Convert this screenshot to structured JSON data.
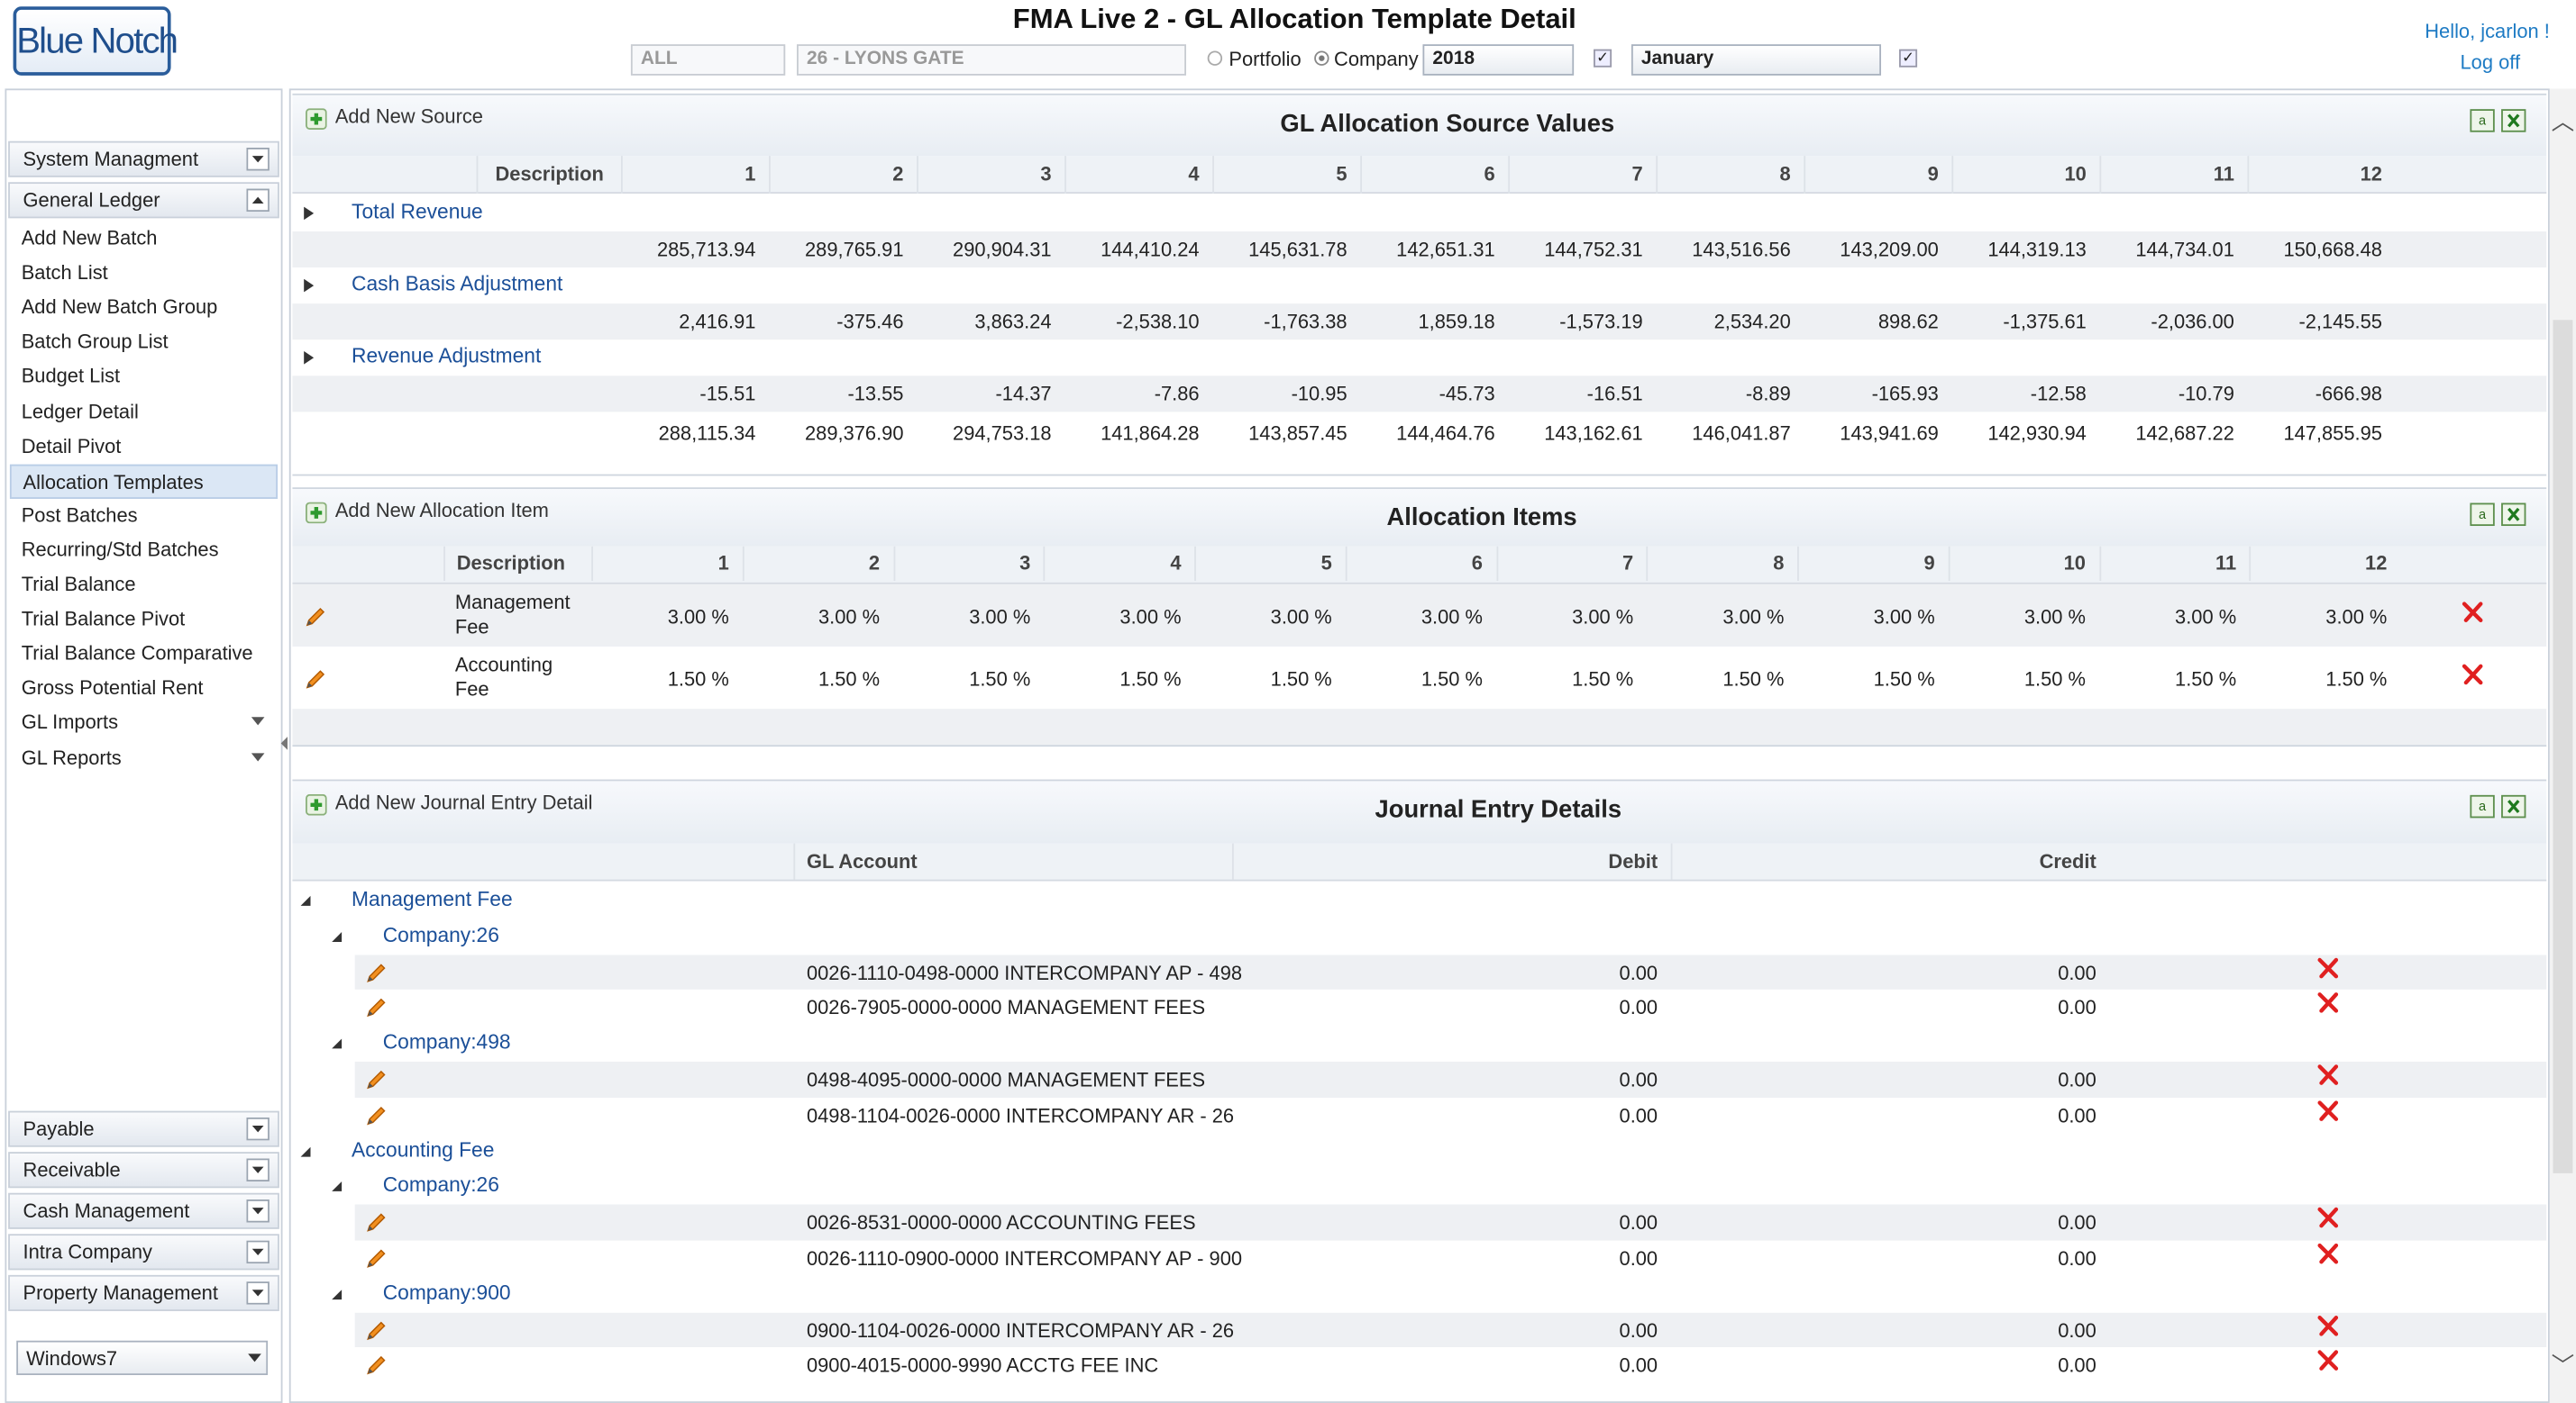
{
  "header": {
    "logo": "Blue Notch",
    "title": "FMA Live 2 - GL Allocation Template Detail",
    "greeting": "Hello, jcarlon !",
    "logoff": "Log off",
    "filters": {
      "scope": "ALL",
      "property": "26 - LYONS GATE",
      "portfolio": "Portfolio",
      "company": "Company",
      "year": "2018",
      "month": "January"
    }
  },
  "sidebar": {
    "top_menus": [
      {
        "label": "System Managment"
      },
      {
        "label": "General Ledger",
        "items": [
          "Add New Batch",
          "Batch List",
          "Add New Batch Group",
          "Batch Group List",
          "Budget List",
          "Ledger Detail",
          "Detail Pivot",
          "Allocation Templates",
          "Post Batches",
          "Recurring/Std Batches",
          "Trial Balance",
          "Trial Balance Pivot",
          "Trial Balance Comparative",
          "Gross Potential Rent",
          "GL Imports",
          "GL Reports"
        ]
      }
    ],
    "bottom_menus": [
      "Payable",
      "Receivable",
      "Cash Management",
      "Intra Company",
      "Property Management"
    ],
    "theme": "Windows7"
  },
  "source": {
    "add": "Add New Source",
    "title": "GL Allocation Source Values",
    "columns": [
      "Description",
      "1",
      "2",
      "3",
      "4",
      "5",
      "6",
      "7",
      "8",
      "9",
      "10",
      "11",
      "12"
    ],
    "groups": [
      {
        "name": "Total Revenue",
        "values": [
          "285,713.94",
          "289,765.91",
          "290,904.31",
          "144,410.24",
          "145,631.78",
          "142,651.31",
          "144,752.31",
          "143,516.56",
          "143,209.00",
          "144,319.13",
          "144,734.01",
          "150,668.48"
        ]
      },
      {
        "name": "Cash Basis Adjustment",
        "values": [
          "2,416.91",
          "-375.46",
          "3,863.24",
          "-2,538.10",
          "-1,763.38",
          "1,859.18",
          "-1,573.19",
          "2,534.20",
          "898.62",
          "-1,375.61",
          "-2,036.00",
          "-2,145.55"
        ]
      },
      {
        "name": "Revenue Adjustment",
        "values": [
          "-15.51",
          "-13.55",
          "-14.37",
          "-7.86",
          "-10.95",
          "-45.73",
          "-16.51",
          "-8.89",
          "-165.93",
          "-12.58",
          "-10.79",
          "-666.98"
        ]
      }
    ],
    "totals": [
      "288,115.34",
      "289,376.90",
      "294,753.18",
      "141,864.28",
      "143,857.45",
      "144,464.76",
      "143,162.61",
      "146,041.87",
      "143,941.69",
      "142,930.94",
      "142,687.22",
      "147,855.95"
    ]
  },
  "allocation": {
    "add": "Add New Allocation Item",
    "title": "Allocation Items",
    "columns": [
      "Description",
      "1",
      "2",
      "3",
      "4",
      "5",
      "6",
      "7",
      "8",
      "9",
      "10",
      "11",
      "12"
    ],
    "rows": [
      {
        "description": "Management Fee",
        "values": [
          "3.00 %",
          "3.00 %",
          "3.00 %",
          "3.00 %",
          "3.00 %",
          "3.00 %",
          "3.00 %",
          "3.00 %",
          "3.00 %",
          "3.00 %",
          "3.00 %",
          "3.00 %"
        ]
      },
      {
        "description": "Accounting Fee",
        "values": [
          "1.50 %",
          "1.50 %",
          "1.50 %",
          "1.50 %",
          "1.50 %",
          "1.50 %",
          "1.50 %",
          "1.50 %",
          "1.50 %",
          "1.50 %",
          "1.50 %",
          "1.50 %"
        ]
      }
    ]
  },
  "journal": {
    "add": "Add New Journal Entry Detail",
    "title": "Journal Entry Details",
    "columns": [
      "GL Account",
      "Debit",
      "Credit"
    ],
    "groups": [
      {
        "name": "Management Fee",
        "companies": [
          {
            "name": "Company:26",
            "rows": [
              {
                "account": "0026-1110-0498-0000 INTERCOMPANY AP - 498",
                "debit": "0.00",
                "credit": "0.00"
              },
              {
                "account": "0026-7905-0000-0000 MANAGEMENT FEES",
                "debit": "0.00",
                "credit": "0.00"
              }
            ]
          },
          {
            "name": "Company:498",
            "rows": [
              {
                "account": "0498-4095-0000-0000 MANAGEMENT FEES",
                "debit": "0.00",
                "credit": "0.00"
              },
              {
                "account": "0498-1104-0026-0000 INTERCOMPANY AR - 26",
                "debit": "0.00",
                "credit": "0.00"
              }
            ]
          }
        ]
      },
      {
        "name": "Accounting Fee",
        "companies": [
          {
            "name": "Company:26",
            "rows": [
              {
                "account": "0026-8531-0000-0000 ACCOUNTING FEES",
                "debit": "0.00",
                "credit": "0.00"
              },
              {
                "account": "0026-1110-0900-0000 INTERCOMPANY AP - 900",
                "debit": "0.00",
                "credit": "0.00"
              }
            ]
          },
          {
            "name": "Company:900",
            "rows": [
              {
                "account": "0900-1104-0026-0000 INTERCOMPANY AR - 26",
                "debit": "0.00",
                "credit": "0.00"
              },
              {
                "account": "0900-4015-0000-9990 ACCTG FEE INC",
                "debit": "0.00",
                "credit": "0.00"
              }
            ]
          }
        ]
      }
    ]
  }
}
